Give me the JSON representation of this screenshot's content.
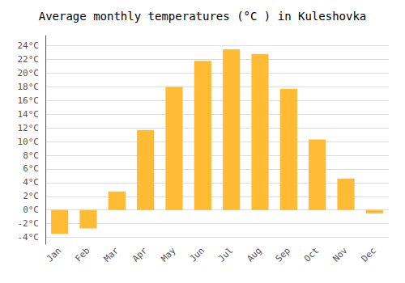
{
  "chart_data": {
    "type": "bar",
    "title": "Average monthly temperatures (°C ) in Kuleshovka",
    "categories": [
      "Jan",
      "Feb",
      "Mar",
      "Apr",
      "May",
      "Jun",
      "Jul",
      "Aug",
      "Sep",
      "Oct",
      "Nov",
      "Dec"
    ],
    "values": [
      -3.5,
      -2.7,
      2.7,
      11.7,
      18.0,
      21.8,
      23.5,
      22.8,
      17.7,
      10.3,
      4.6,
      -0.5
    ],
    "color": "#FFBB33",
    "ylim": [
      -5,
      25.5
    ],
    "yticks": [
      {
        "value": -4,
        "label": "-4°C"
      },
      {
        "value": -2,
        "label": "-2°C"
      },
      {
        "value": 0,
        "label": "0°C"
      },
      {
        "value": 2,
        "label": "2°C"
      },
      {
        "value": 4,
        "label": "4°C"
      },
      {
        "value": 6,
        "label": "6°C"
      },
      {
        "value": 8,
        "label": "8°C"
      },
      {
        "value": 10,
        "label": "10°C"
      },
      {
        "value": 12,
        "label": "12°C"
      },
      {
        "value": 14,
        "label": "14°C"
      },
      {
        "value": 16,
        "label": "16°C"
      },
      {
        "value": 18,
        "label": "18°C"
      },
      {
        "value": 20,
        "label": "20°C"
      },
      {
        "value": 22,
        "label": "22°C"
      },
      {
        "value": 24,
        "label": "24°C"
      }
    ],
    "grid": true
  }
}
